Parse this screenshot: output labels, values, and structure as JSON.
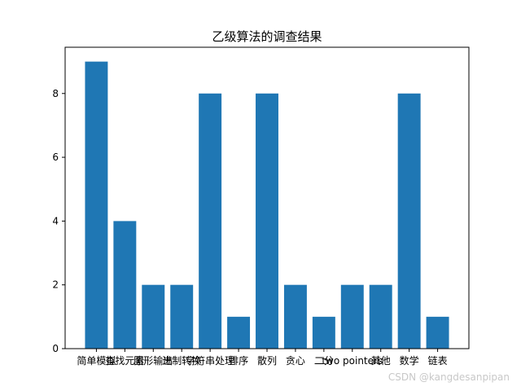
{
  "chart_data": {
    "type": "bar",
    "title": "乙级算法的调查结果",
    "categories": [
      "简单模拟",
      "查找元素",
      "图形输出",
      "进制转换",
      "字符串处理",
      "排序",
      "散列",
      "贪心",
      "二分",
      "two pointers",
      "其他",
      "数学",
      "链表"
    ],
    "values": [
      9,
      4,
      2,
      2,
      8,
      1,
      8,
      2,
      1,
      2,
      2,
      8,
      1
    ],
    "yticks": [
      0,
      2,
      4,
      6,
      8
    ],
    "ylim": [
      0,
      9.45
    ],
    "xlabel": "",
    "ylabel": "",
    "grid": false,
    "bar_color": "#1f77b4"
  },
  "watermark": "CSDN @kangdesanpipan"
}
